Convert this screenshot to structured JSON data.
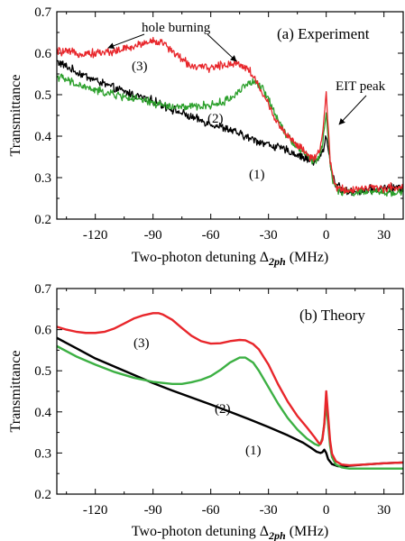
{
  "chart_data": [
    {
      "type": "line",
      "title": "(a) Experiment",
      "xlabel": "Two-photon detuning",
      "xlabel_symbol": "Δ",
      "xlabel_sub": "2ph",
      "xlabel_unit": "(MHz)",
      "ylabel": "Transmittance",
      "xlim": [
        -140,
        40
      ],
      "ylim": [
        0.2,
        0.7
      ],
      "xticks": [
        -120,
        -90,
        -60,
        -30,
        0,
        30
      ],
      "xtick_labels": [
        "-120",
        "-90",
        "-60",
        "-30",
        "0",
        "30"
      ],
      "yticks": [
        0.2,
        0.3,
        0.4,
        0.5,
        0.6,
        0.7
      ],
      "ytick_labels": [
        "0.2",
        "0.3",
        "0.4",
        "0.5",
        "0.6",
        "0.7"
      ],
      "noisy": true,
      "annotations": [
        "hole burning",
        "EIT peak",
        "(1)",
        "(2)",
        "(3)"
      ],
      "series": [
        {
          "label": "(1)",
          "color": "#000000",
          "x": [
            -140,
            -130,
            -120,
            -110,
            -100,
            -90,
            -80,
            -70,
            -60,
            -50,
            -40,
            -30,
            -20,
            -15,
            -10,
            -7,
            -5,
            -3,
            -1,
            0,
            1,
            3,
            5,
            8,
            12,
            20,
            30,
            40
          ],
          "y": [
            0.58,
            0.555,
            0.535,
            0.515,
            0.5,
            0.485,
            0.465,
            0.445,
            0.43,
            0.415,
            0.395,
            0.38,
            0.365,
            0.355,
            0.345,
            0.34,
            0.34,
            0.35,
            0.375,
            0.405,
            0.37,
            0.31,
            0.285,
            0.27,
            0.265,
            0.27,
            0.275,
            0.275
          ]
        },
        {
          "label": "(2)",
          "color": "#2ca02c",
          "x": [
            -140,
            -130,
            -120,
            -110,
            -100,
            -90,
            -80,
            -70,
            -60,
            -55,
            -50,
            -45,
            -42,
            -38,
            -34,
            -30,
            -25,
            -20,
            -15,
            -10,
            -7,
            -5,
            -3,
            -2,
            -1,
            0,
            1,
            2,
            4,
            6,
            10,
            20,
            30,
            40
          ],
          "y": [
            0.545,
            0.525,
            0.51,
            0.5,
            0.49,
            0.48,
            0.47,
            0.47,
            0.475,
            0.48,
            0.49,
            0.51,
            0.525,
            0.53,
            0.52,
            0.49,
            0.44,
            0.4,
            0.375,
            0.355,
            0.34,
            0.34,
            0.36,
            0.38,
            0.42,
            0.45,
            0.4,
            0.33,
            0.285,
            0.27,
            0.265,
            0.265,
            0.265,
            0.265
          ]
        },
        {
          "label": "(3)",
          "color": "#e8262b",
          "x": [
            -140,
            -130,
            -120,
            -110,
            -100,
            -95,
            -90,
            -85,
            -80,
            -75,
            -70,
            -65,
            -60,
            -55,
            -50,
            -45,
            -40,
            -35,
            -30,
            -25,
            -20,
            -15,
            -10,
            -7,
            -5,
            -3,
            -2,
            -1,
            0,
            1,
            2,
            4,
            6,
            10,
            20,
            30,
            40
          ],
          "y": [
            0.605,
            0.6,
            0.6,
            0.605,
            0.615,
            0.625,
            0.63,
            0.625,
            0.605,
            0.585,
            0.57,
            0.565,
            0.565,
            0.57,
            0.575,
            0.575,
            0.56,
            0.52,
            0.475,
            0.43,
            0.4,
            0.38,
            0.355,
            0.345,
            0.35,
            0.37,
            0.4,
            0.45,
            0.51,
            0.42,
            0.34,
            0.29,
            0.275,
            0.27,
            0.275,
            0.275,
            0.278
          ]
        }
      ]
    },
    {
      "type": "line",
      "title": "(b) Theory",
      "xlabel": "Two-photon detuning",
      "xlabel_symbol": "Δ",
      "xlabel_sub": "2ph",
      "xlabel_unit": "(MHz)",
      "ylabel": "Transmittance",
      "xlim": [
        -140,
        40
      ],
      "ylim": [
        0.2,
        0.7
      ],
      "xticks": [
        -120,
        -90,
        -60,
        -30,
        0,
        30
      ],
      "xtick_labels": [
        "-120",
        "-90",
        "-60",
        "-30",
        "0",
        "30"
      ],
      "yticks": [
        0.2,
        0.3,
        0.4,
        0.5,
        0.6,
        0.7
      ],
      "ytick_labels": [
        "0.2",
        "0.3",
        "0.4",
        "0.5",
        "0.6",
        "0.7"
      ],
      "noisy": false,
      "annotations": [
        "(1)",
        "(2)",
        "(3)"
      ],
      "series": [
        {
          "label": "(1)",
          "color": "#000000",
          "x": [
            -140,
            -130,
            -120,
            -110,
            -100,
            -90,
            -80,
            -70,
            -60,
            -50,
            -40,
            -30,
            -20,
            -12,
            -8,
            -5,
            -3,
            -2,
            -1,
            0,
            1,
            3,
            6,
            10,
            20,
            30,
            40
          ],
          "y": [
            0.58,
            0.555,
            0.53,
            0.51,
            0.49,
            0.47,
            0.452,
            0.435,
            0.418,
            0.4,
            0.382,
            0.363,
            0.343,
            0.325,
            0.313,
            0.303,
            0.3,
            0.302,
            0.308,
            0.3,
            0.285,
            0.273,
            0.268,
            0.268,
            0.272,
            0.275,
            0.277
          ]
        },
        {
          "label": "(2)",
          "color": "#3cb043",
          "x": [
            -140,
            -130,
            -120,
            -110,
            -100,
            -90,
            -80,
            -75,
            -70,
            -65,
            -60,
            -55,
            -50,
            -45,
            -42,
            -38,
            -35,
            -30,
            -25,
            -20,
            -15,
            -10,
            -6,
            -4,
            -3,
            -2,
            -1,
            0,
            1,
            2,
            3,
            5,
            8,
            12,
            20,
            30,
            40
          ],
          "y": [
            0.56,
            0.535,
            0.515,
            0.497,
            0.483,
            0.473,
            0.468,
            0.468,
            0.472,
            0.478,
            0.487,
            0.502,
            0.52,
            0.532,
            0.532,
            0.52,
            0.5,
            0.46,
            0.42,
            0.385,
            0.357,
            0.335,
            0.322,
            0.318,
            0.322,
            0.336,
            0.37,
            0.42,
            0.37,
            0.318,
            0.29,
            0.272,
            0.265,
            0.262,
            0.262,
            0.262,
            0.262
          ]
        },
        {
          "label": "(3)",
          "color": "#e8262b",
          "x": [
            -140,
            -135,
            -130,
            -125,
            -120,
            -115,
            -110,
            -105,
            -100,
            -95,
            -90,
            -87,
            -85,
            -80,
            -75,
            -70,
            -65,
            -60,
            -55,
            -50,
            -45,
            -42,
            -38,
            -35,
            -30,
            -25,
            -20,
            -15,
            -10,
            -6,
            -4,
            -3,
            -2,
            -1,
            0,
            1,
            2,
            3,
            5,
            8,
            12,
            20,
            30,
            40
          ],
          "y": [
            0.607,
            0.6,
            0.595,
            0.592,
            0.592,
            0.595,
            0.603,
            0.615,
            0.627,
            0.635,
            0.64,
            0.64,
            0.637,
            0.624,
            0.604,
            0.585,
            0.572,
            0.566,
            0.567,
            0.572,
            0.575,
            0.574,
            0.565,
            0.552,
            0.515,
            0.467,
            0.425,
            0.39,
            0.362,
            0.338,
            0.325,
            0.322,
            0.332,
            0.37,
            0.45,
            0.39,
            0.33,
            0.298,
            0.28,
            0.272,
            0.27,
            0.272,
            0.275,
            0.277
          ]
        }
      ]
    }
  ],
  "panel_a": {
    "title": "(a) Experiment",
    "ylabel": "Transmittance",
    "xlabel": "Two-photon detuning",
    "xlabel_symbol": "Δ",
    "xlabel_sub": "2ph",
    "xlabel_unit": " (MHz)",
    "label_1": "(1)",
    "label_2": "(2)",
    "label_3": "(3)",
    "hole_burning": "hole burning",
    "eit_peak": "EIT peak"
  },
  "panel_b": {
    "title": "(b) Theory",
    "ylabel": "Transmittance",
    "xlabel": "Two-photon detuning",
    "xlabel_symbol": "Δ",
    "xlabel_sub": "2ph",
    "xlabel_unit": " (MHz)",
    "label_1": "(1)",
    "label_2": "(2)",
    "label_3": "(3)"
  }
}
